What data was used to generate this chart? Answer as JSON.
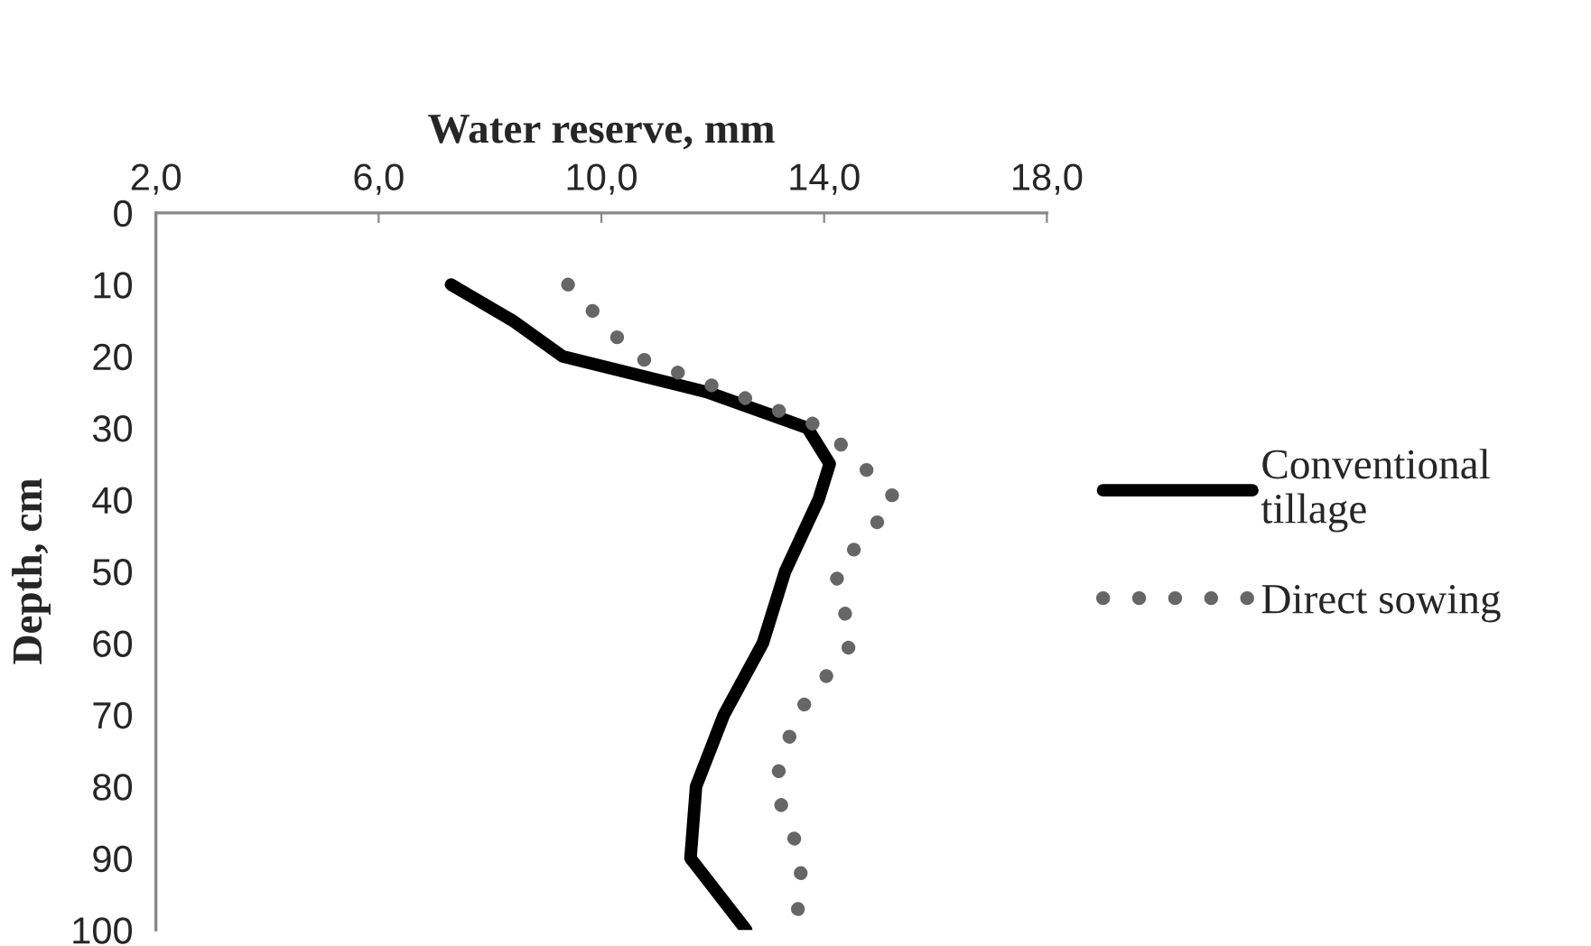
{
  "chart_data": {
    "type": "line",
    "xlabel": "Water reserve, mm",
    "ylabel": "Depth, cm",
    "xlim": [
      2,
      18
    ],
    "xticks": [
      {
        "value": 2,
        "label": "2,0"
      },
      {
        "value": 6,
        "label": "6,0"
      },
      {
        "value": 10,
        "label": "10,0"
      },
      {
        "value": 14,
        "label": "14,0"
      },
      {
        "value": 18,
        "label": "18,0"
      }
    ],
    "ylim": [
      100,
      0
    ],
    "yticks": [
      0,
      10,
      20,
      30,
      40,
      50,
      60,
      70,
      80,
      90,
      100
    ],
    "grid": false,
    "legend": "right",
    "series": [
      {
        "name": "Conventional\ntillage",
        "color": "#000000",
        "line_style": "solid",
        "x": [
          7.3,
          8.4,
          9.3,
          11.9,
          13.7,
          14.1,
          13.9,
          13.6,
          13.3,
          12.9,
          12.2,
          11.7,
          11.6,
          12.6
        ],
        "values": [
          10,
          15,
          20,
          25,
          30,
          35,
          40,
          45,
          50,
          60,
          70,
          80,
          90,
          100
        ]
      },
      {
        "name": "Direct sowing",
        "color": "#666666",
        "line_style": "dotted",
        "x": [
          9.4,
          10.6,
          14.0,
          15.3,
          14.2,
          14.5,
          13.5,
          13.1,
          13.6,
          13.5
        ],
        "values": [
          10,
          20,
          30,
          40,
          50,
          60,
          70,
          80,
          90,
          100
        ]
      }
    ]
  }
}
